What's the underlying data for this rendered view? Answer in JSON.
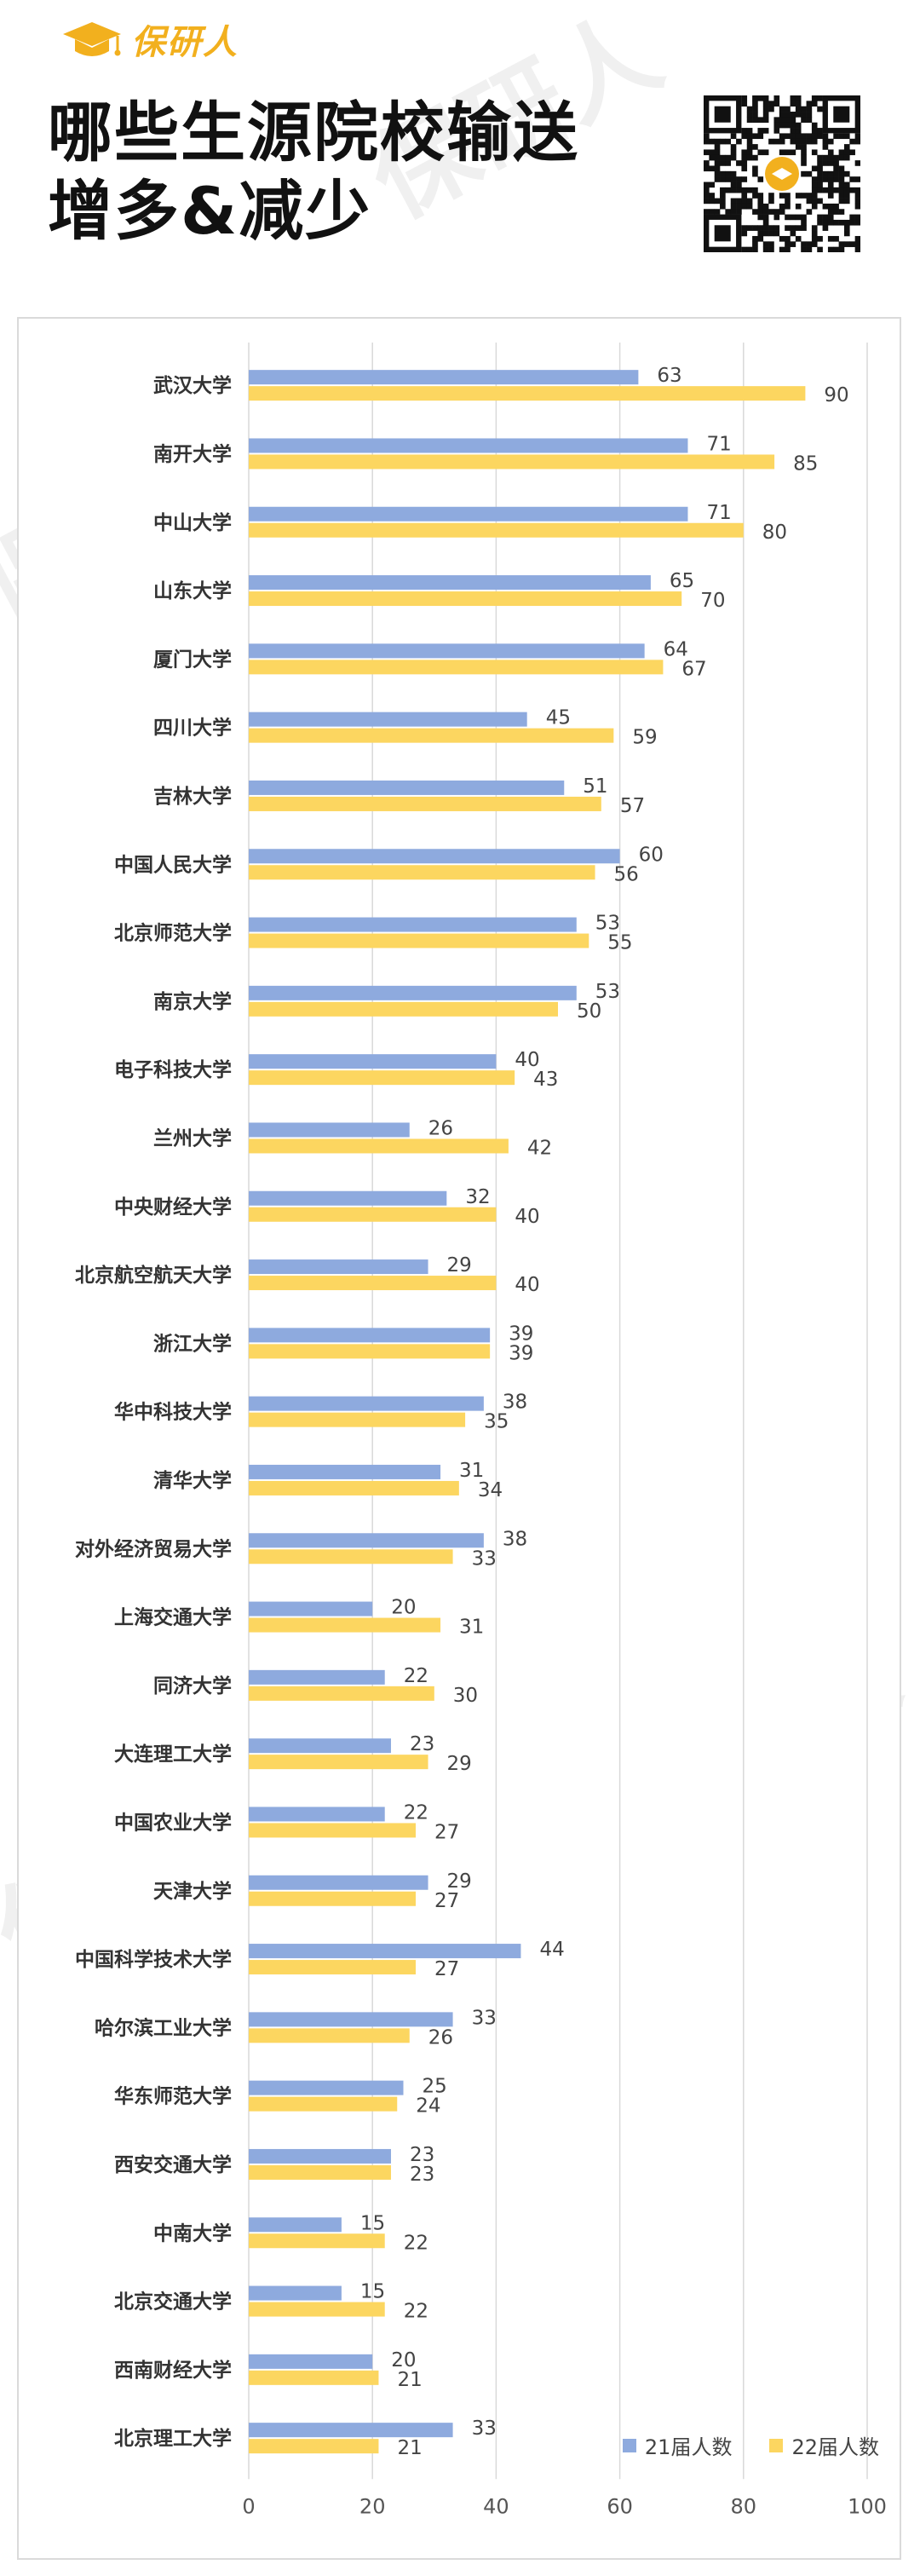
{
  "brand": {
    "name": "保研人"
  },
  "title": {
    "line1": "哪些生源院校输送",
    "line2": "增多&减少"
  },
  "colors": {
    "series1": "#8eaade",
    "series2": "#fcd660",
    "brand": "#f2b01e",
    "grid": "#d9d9d9"
  },
  "watermark": "保研人",
  "chart_data": {
    "type": "bar",
    "orientation": "horizontal",
    "categories": [
      "武汉大学",
      "南开大学",
      "中山大学",
      "山东大学",
      "厦门大学",
      "四川大学",
      "吉林大学",
      "中国人民大学",
      "北京师范大学",
      "南京大学",
      "电子科技大学",
      "兰州大学",
      "中央财经大学",
      "北京航空航天大学",
      "浙江大学",
      "华中科技大学",
      "清华大学",
      "对外经济贸易大学",
      "上海交通大学",
      "同济大学",
      "大连理工大学",
      "中国农业大学",
      "天津大学",
      "中国科学技术大学",
      "哈尔滨工业大学",
      "华东师范大学",
      "西安交通大学",
      "中南大学",
      "北京交通大学",
      "西南财经大学",
      "北京理工大学"
    ],
    "series": [
      {
        "name": "21届人数",
        "values": [
          63,
          71,
          71,
          65,
          64,
          45,
          51,
          60,
          53,
          53,
          40,
          26,
          32,
          29,
          39,
          38,
          31,
          38,
          20,
          22,
          23,
          22,
          29,
          44,
          33,
          25,
          23,
          15,
          15,
          20,
          33
        ]
      },
      {
        "name": "22届人数",
        "values": [
          90,
          85,
          80,
          70,
          67,
          59,
          57,
          56,
          55,
          50,
          43,
          42,
          40,
          40,
          39,
          35,
          34,
          33,
          31,
          30,
          29,
          27,
          27,
          27,
          26,
          24,
          23,
          22,
          22,
          21,
          21
        ]
      }
    ],
    "xlim": [
      0,
      100
    ],
    "xticks": [
      0,
      20,
      40,
      60,
      80,
      100
    ],
    "grid": true,
    "legend_position": "bottom-right",
    "data_labels": true
  }
}
